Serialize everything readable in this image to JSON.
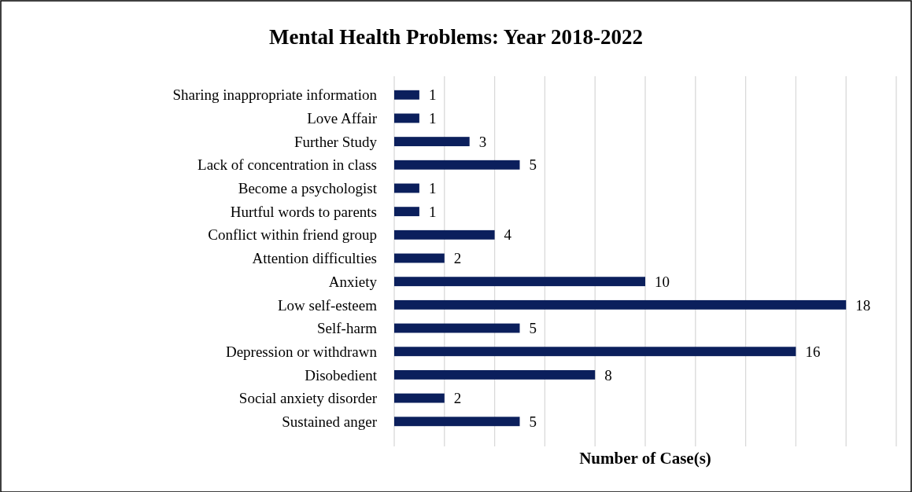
{
  "chart_data": {
    "type": "bar",
    "orientation": "horizontal",
    "title": "Mental Health Problems: Year 2018-2022",
    "xlabel": "Number of Case(s)",
    "categories": [
      "Sharing inappropriate information",
      "Love Affair",
      "Further Study",
      "Lack of concentration in class",
      "Become a psychologist",
      "Hurtful words to parents",
      "Conflict within friend group",
      "Attention difficulties",
      "Anxiety",
      "Low self-esteem",
      "Self-harm",
      "Depression or withdrawn",
      "Disobedient",
      "Social anxiety disorder",
      "Sustained anger"
    ],
    "values": [
      1,
      1,
      3,
      5,
      1,
      1,
      4,
      2,
      10,
      18,
      5,
      16,
      8,
      2,
      5
    ],
    "color": "#0b1f5c",
    "data_labels": true,
    "grid": "x",
    "tick_labels": "y",
    "xlim": [
      0,
      20
    ],
    "xticks": [
      {
        "value": 0,
        "label": null
      },
      {
        "value": 2,
        "label": null
      },
      {
        "value": 4,
        "label": null
      },
      {
        "value": 6,
        "label": null
      },
      {
        "value": 8,
        "label": null
      },
      {
        "value": 10,
        "label": null
      },
      {
        "value": 12,
        "label": null
      },
      {
        "value": 14,
        "label": null
      },
      {
        "value": 16,
        "label": null
      },
      {
        "value": 18,
        "label": null
      },
      {
        "value": 20,
        "label": null
      }
    ]
  }
}
